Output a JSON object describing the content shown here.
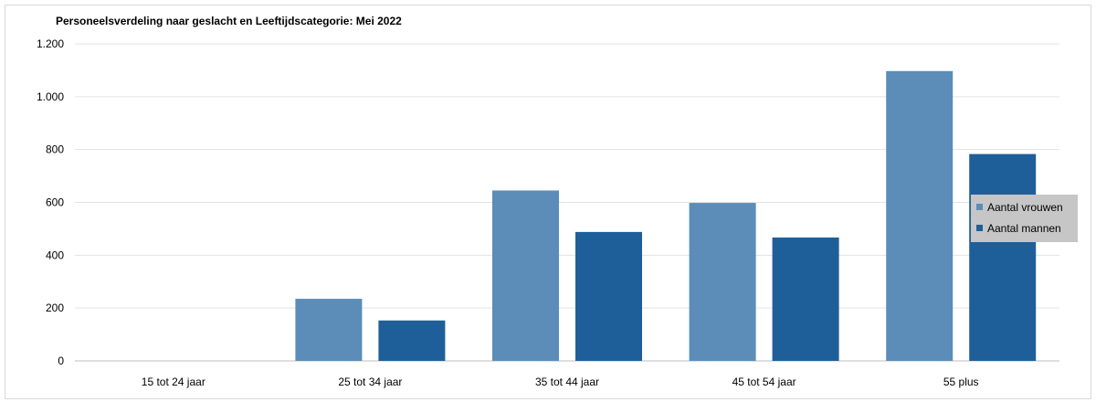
{
  "chart_data": {
    "type": "bar",
    "title": "Personeelsverdeling naar geslacht en Leeftijdscategorie: Mei 2022",
    "xlabel": "",
    "ylabel": "",
    "ylim": [
      0,
      1200
    ],
    "y_ticks": [
      0,
      200,
      400,
      600,
      800,
      1000,
      1200
    ],
    "y_tick_labels": [
      "0",
      "200",
      "400",
      "600",
      "800",
      "1.000",
      "1.200"
    ],
    "categories": [
      "15 tot 24 jaar",
      "25 tot 34 jaar",
      "35 tot 44 jaar",
      "45 tot 54 jaar",
      "55 plus"
    ],
    "series": [
      {
        "name": "Aantal vrouwen",
        "color": "#5b8db8",
        "values": [
          0,
          235,
          645,
          598,
          1097
        ]
      },
      {
        "name": "Aantal mannen",
        "color": "#1f5f99",
        "values": [
          0,
          153,
          488,
          467,
          783
        ]
      }
    ],
    "grid": true,
    "legend_position": "right",
    "legend_background": "#c6c6c6"
  }
}
